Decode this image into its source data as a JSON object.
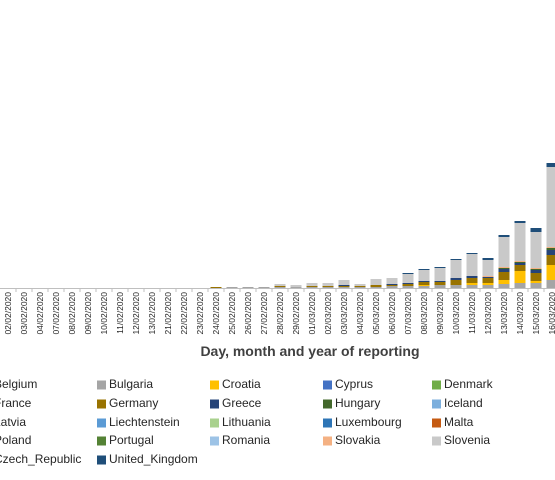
{
  "chart_data": {
    "type": "stacked-bar",
    "x_label": "Day, month and year of reporting",
    "categories": [
      "02/02/2020",
      "03/02/2020",
      "04/02/2020",
      "07/02/2020",
      "08/02/2020",
      "09/02/2020",
      "10/02/2020",
      "11/02/2020",
      "12/02/2020",
      "13/02/2020",
      "21/02/2020",
      "22/02/2020",
      "23/02/2020",
      "24/02/2020",
      "25/02/2020",
      "26/02/2020",
      "27/02/2020",
      "28/02/2020",
      "29/02/2020",
      "01/03/2020",
      "02/03/2020",
      "03/03/2020",
      "04/03/2020",
      "05/03/2020",
      "06/03/2020",
      "07/03/2020",
      "08/03/2020",
      "09/03/2020",
      "10/03/2020",
      "11/03/2020",
      "12/03/2020",
      "13/03/2020",
      "14/03/2020",
      "15/03/2020",
      "16/03/2020"
    ],
    "ylim": [
      0,
      130
    ],
    "series": [
      {
        "name": "Belgium",
        "color": "#ed7d31",
        "values": [
          0,
          0,
          0,
          0,
          0,
          0,
          0,
          0,
          0,
          0,
          0,
          0,
          0,
          0,
          0,
          0,
          0,
          0,
          0,
          0,
          0,
          0,
          0,
          0,
          0,
          0,
          0,
          0,
          0,
          0,
          0,
          0,
          0,
          0,
          0
        ]
      },
      {
        "name": "Bulgaria",
        "color": "#a5a5a5",
        "values": [
          0,
          0,
          0,
          0,
          0,
          0,
          0,
          0,
          0,
          0,
          0,
          0,
          0,
          0,
          1,
          1,
          1,
          1,
          1,
          1,
          1,
          1,
          1,
          1,
          2,
          2,
          2,
          3,
          3,
          3,
          3,
          4,
          5,
          5,
          8
        ]
      },
      {
        "name": "Croatia",
        "color": "#ffc000",
        "values": [
          0,
          0,
          0,
          0,
          0,
          0,
          0,
          0,
          0,
          0,
          0,
          0,
          0,
          0,
          0,
          0,
          0,
          0,
          0,
          0,
          0,
          0,
          0,
          0,
          0,
          0,
          1,
          0,
          0,
          2,
          2,
          4,
          12,
          2,
          15
        ]
      },
      {
        "name": "Cyprus",
        "color": "#4472c4",
        "values": [
          0,
          0,
          0,
          0,
          0,
          0,
          0,
          0,
          0,
          0,
          0,
          0,
          0,
          0,
          0,
          0,
          0,
          0,
          0,
          0,
          0,
          0,
          0,
          0,
          0,
          0,
          0,
          0,
          0,
          0,
          0,
          0,
          0,
          0,
          0
        ]
      },
      {
        "name": "Denmark",
        "color": "#70ad47",
        "values": [
          0,
          0,
          0,
          0,
          0,
          0,
          0,
          0,
          0,
          0,
          0,
          0,
          0,
          0,
          0,
          0,
          0,
          0,
          0,
          0,
          0,
          0,
          0,
          0,
          0,
          0,
          0,
          0,
          0,
          0,
          0,
          0,
          0,
          0,
          0
        ]
      },
      {
        "name": "France",
        "color": "#5b9bd5",
        "values": [
          0,
          0,
          0,
          0,
          0,
          0,
          0,
          0,
          0,
          0,
          0,
          0,
          0,
          0,
          0,
          0,
          0,
          0,
          0,
          0,
          0,
          0,
          0,
          0,
          0,
          0,
          0,
          0,
          0,
          0,
          0,
          0,
          0,
          0,
          0
        ]
      },
      {
        "name": "Germany",
        "color": "#997300",
        "values": [
          0,
          0,
          0,
          0,
          0,
          0,
          0,
          0,
          0,
          0,
          0,
          0,
          0,
          1,
          0,
          0,
          0,
          1,
          0,
          1,
          1,
          1,
          1,
          2,
          1,
          2,
          3,
          3,
          5,
          5,
          5,
          8,
          6,
          8,
          10
        ]
      },
      {
        "name": "Greece",
        "color": "#264478",
        "values": [
          0,
          0,
          0,
          0,
          0,
          0,
          0,
          0,
          0,
          0,
          0,
          0,
          0,
          0,
          0,
          0,
          0,
          0,
          0,
          0,
          0,
          1,
          0,
          0,
          1,
          1,
          1,
          1,
          2,
          2,
          1,
          3,
          2,
          3,
          5
        ]
      },
      {
        "name": "Hungary",
        "color": "#43682b",
        "values": [
          0,
          0,
          0,
          0,
          0,
          0,
          0,
          0,
          0,
          0,
          0,
          0,
          0,
          0,
          0,
          0,
          0,
          0,
          0,
          0,
          0,
          0,
          0,
          0,
          0,
          0,
          0,
          0,
          0,
          0,
          0,
          1,
          1,
          1,
          2
        ]
      },
      {
        "name": "Iceland",
        "color": "#7cafdd",
        "values": [
          0,
          0,
          0,
          0,
          0,
          0,
          0,
          0,
          0,
          0,
          0,
          0,
          0,
          0,
          0,
          0,
          0,
          0,
          0,
          0,
          0,
          0,
          0,
          0,
          0,
          0,
          0,
          0,
          0,
          0,
          0,
          0,
          0,
          0,
          0
        ]
      },
      {
        "name": "Latvia",
        "color": "#636363",
        "values": [
          0,
          0,
          0,
          0,
          0,
          0,
          0,
          0,
          0,
          0,
          0,
          0,
          0,
          0,
          0,
          0,
          0,
          0,
          0,
          0,
          0,
          0,
          0,
          0,
          0,
          0,
          0,
          0,
          0,
          0,
          0,
          0,
          0,
          0,
          0
        ]
      },
      {
        "name": "Liechtenstein",
        "color": "#5b9bd5",
        "values": [
          0,
          0,
          0,
          0,
          0,
          0,
          0,
          0,
          0,
          0,
          0,
          0,
          0,
          0,
          0,
          0,
          0,
          0,
          0,
          0,
          0,
          0,
          0,
          0,
          0,
          0,
          0,
          0,
          0,
          0,
          0,
          0,
          0,
          0,
          0
        ]
      },
      {
        "name": "Lithuania",
        "color": "#a9d18e",
        "values": [
          0,
          0,
          0,
          0,
          0,
          0,
          0,
          0,
          0,
          0,
          0,
          0,
          0,
          0,
          0,
          0,
          0,
          0,
          0,
          0,
          0,
          0,
          0,
          0,
          0,
          0,
          0,
          0,
          0,
          0,
          0,
          0,
          0,
          0,
          0
        ]
      },
      {
        "name": "Luxembourg",
        "color": "#2e75b6",
        "values": [
          0,
          0,
          0,
          0,
          0,
          0,
          0,
          0,
          0,
          0,
          0,
          0,
          0,
          0,
          0,
          0,
          0,
          0,
          0,
          0,
          0,
          0,
          0,
          0,
          0,
          0,
          0,
          0,
          0,
          0,
          0,
          0,
          0,
          0,
          0
        ]
      },
      {
        "name": "Malta",
        "color": "#c55a11",
        "values": [
          0,
          0,
          0,
          0,
          0,
          0,
          0,
          0,
          0,
          0,
          0,
          0,
          0,
          0,
          0,
          0,
          0,
          0,
          0,
          0,
          0,
          0,
          0,
          0,
          0,
          0,
          0,
          0,
          0,
          0,
          0,
          0,
          0,
          0,
          0
        ]
      },
      {
        "name": "Poland",
        "color": "#255e91",
        "values": [
          0,
          0,
          0,
          0,
          0,
          0,
          0,
          0,
          0,
          0,
          0,
          0,
          0,
          0,
          0,
          0,
          0,
          0,
          0,
          0,
          0,
          0,
          0,
          0,
          0,
          0,
          0,
          0,
          0,
          0,
          0,
          0,
          0,
          0,
          0
        ]
      },
      {
        "name": "Portugal",
        "color": "#548235",
        "values": [
          0,
          0,
          0,
          0,
          0,
          0,
          0,
          0,
          0,
          0,
          0,
          0,
          0,
          0,
          0,
          0,
          0,
          0,
          0,
          0,
          0,
          0,
          0,
          0,
          0,
          0,
          0,
          0,
          0,
          0,
          0,
          0,
          0,
          0,
          0
        ]
      },
      {
        "name": "Romania",
        "color": "#9dc3e6",
        "values": [
          0,
          0,
          0,
          0,
          0,
          0,
          0,
          0,
          0,
          0,
          0,
          0,
          0,
          0,
          0,
          0,
          0,
          0,
          0,
          0,
          0,
          0,
          0,
          0,
          0,
          0,
          0,
          0,
          0,
          0,
          0,
          0,
          0,
          0,
          0
        ]
      },
      {
        "name": "Slovakia",
        "color": "#f4b183",
        "values": [
          0,
          0,
          0,
          0,
          0,
          0,
          0,
          0,
          0,
          0,
          0,
          0,
          0,
          0,
          0,
          0,
          0,
          0,
          0,
          0,
          0,
          0,
          0,
          0,
          0,
          0,
          0,
          0,
          0,
          0,
          1,
          1,
          1,
          1,
          1
        ]
      },
      {
        "name": "Slovenia",
        "color": "#c9c9c9",
        "values": [
          0,
          0,
          0,
          0,
          0,
          0,
          0,
          0,
          0,
          0,
          0,
          0,
          0,
          0,
          0,
          0,
          0,
          2,
          2,
          3,
          3,
          5,
          2,
          6,
          6,
          9,
          11,
          13,
          18,
          22,
          16,
          30,
          38,
          36,
          80
        ]
      },
      {
        "name": "Czech_Republic",
        "color": "#ffd966",
        "values": [
          0,
          0,
          0,
          0,
          0,
          0,
          0,
          0,
          0,
          0,
          0,
          0,
          0,
          0,
          0,
          0,
          0,
          0,
          0,
          0,
          0,
          0,
          0,
          0,
          0,
          0,
          0,
          0,
          0,
          0,
          0,
          0,
          0,
          0,
          0
        ]
      },
      {
        "name": "United_Kingdom",
        "color": "#1f4e79",
        "values": [
          0,
          0,
          0,
          0,
          0,
          0,
          0,
          0,
          0,
          0,
          0,
          0,
          0,
          0,
          0,
          0,
          0,
          0,
          0,
          0,
          0,
          0,
          0,
          0,
          0,
          1,
          1,
          1,
          1,
          1,
          2,
          2,
          2,
          4,
          4
        ]
      }
    ]
  }
}
